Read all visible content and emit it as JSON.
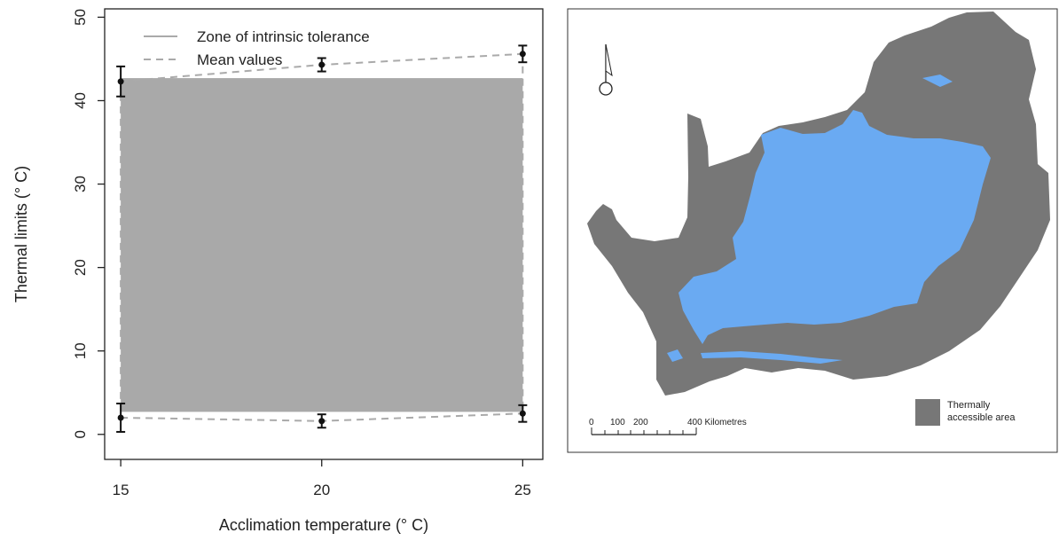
{
  "chart_data": {
    "type": "line",
    "xlabel": "Acclimation temperature (° C)",
    "ylabel": "Thermal limits (° C)",
    "xlim": [
      14.6,
      25.5
    ],
    "ylim": [
      -3,
      51
    ],
    "x_ticks": [
      15,
      20,
      25
    ],
    "y_ticks": [
      0,
      10,
      20,
      30,
      40,
      50
    ],
    "grid": false,
    "legend_position": "top-left",
    "zone": {
      "name": "Zone of intrinsic tolerance",
      "color": "#a9a9a9",
      "x": [
        15,
        25
      ],
      "y_low": 2.7,
      "y_high": 42.7
    },
    "series": [
      {
        "name": "Mean values",
        "role": "upper",
        "color": "#aaaaaa",
        "style": "dashed",
        "x": [
          15,
          20,
          25
        ],
        "y": [
          42.3,
          44.3,
          45.6
        ],
        "err": [
          1.8,
          0.8,
          1.0
        ]
      },
      {
        "name": "Mean values",
        "role": "lower",
        "color": "#aaaaaa",
        "style": "dashed",
        "x": [
          15,
          20,
          25
        ],
        "y": [
          2.0,
          1.6,
          2.5
        ],
        "err": [
          1.7,
          0.8,
          1.0
        ]
      }
    ]
  },
  "map": {
    "scale_label_0": "0",
    "scale_label_100": "100",
    "scale_label_200": "200",
    "scale_label_400": "400 Kilometres",
    "legend_line1": "Thermally",
    "legend_line2": "accessible area",
    "land_color": "#777777",
    "accessible_color": "#6aaaf2",
    "north_arrow_icon": "north-arrow-icon"
  }
}
